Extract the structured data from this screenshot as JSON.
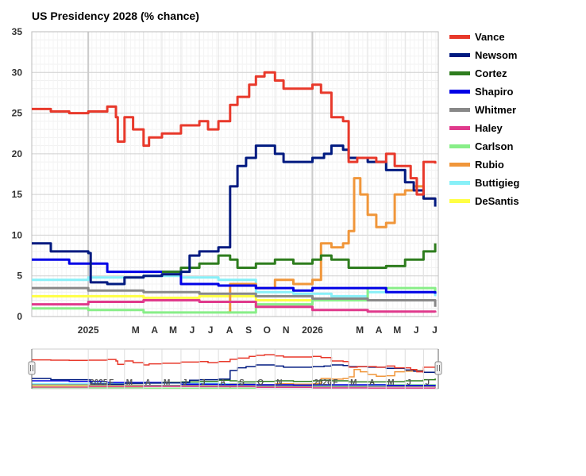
{
  "chart_data": {
    "type": "line",
    "title": "US Presidency 2028 (% chance)",
    "xlabel": "",
    "ylabel": "",
    "ylim": [
      0,
      35
    ],
    "yticks": [
      0,
      5,
      10,
      15,
      20,
      25,
      30,
      35
    ],
    "grid": true,
    "legend_position": "right",
    "x_range": [
      "2024-10-01",
      "2026-07-25"
    ],
    "xtick_labels": [
      {
        "label": "2025",
        "date": "2025-01-01",
        "bold": true
      },
      {
        "label": "M",
        "date": "2025-03-01"
      },
      {
        "label": "A",
        "date": "2025-04-01"
      },
      {
        "label": "M",
        "date": "2025-05-01"
      },
      {
        "label": "J",
        "date": "2025-06-01"
      },
      {
        "label": "J",
        "date": "2025-07-01"
      },
      {
        "label": "A",
        "date": "2025-08-01"
      },
      {
        "label": "S",
        "date": "2025-09-01"
      },
      {
        "label": "O",
        "date": "2025-10-01"
      },
      {
        "label": "N",
        "date": "2025-11-01"
      },
      {
        "label": "2026",
        "date": "2026-01-01",
        "bold": true
      },
      {
        "label": "M",
        "date": "2026-03-01"
      },
      {
        "label": "A",
        "date": "2026-04-01"
      },
      {
        "label": "M",
        "date": "2026-05-01"
      },
      {
        "label": "J",
        "date": "2026-06-01"
      },
      {
        "label": "J",
        "date": "2026-07-01"
      }
    ],
    "navigator_labels": [
      {
        "label": "2025",
        "date": "2025-01-01"
      },
      {
        "label": "F",
        "date": "2025-02-01"
      },
      {
        "label": "M",
        "date": "2025-03-01"
      },
      {
        "label": "A",
        "date": "2025-04-01"
      },
      {
        "label": "M",
        "date": "2025-05-01"
      },
      {
        "label": "J",
        "date": "2025-06-01"
      },
      {
        "label": "J",
        "date": "2025-07-01"
      },
      {
        "label": "A",
        "date": "2025-08-01"
      },
      {
        "label": "S",
        "date": "2025-09-01"
      },
      {
        "label": "O",
        "date": "2025-10-01"
      },
      {
        "label": "N",
        "date": "2025-11-01"
      },
      {
        "label": "2026",
        "date": "2026-01-01"
      },
      {
        "label": "F",
        "date": "2026-02-01"
      },
      {
        "label": "M",
        "date": "2026-03-01"
      },
      {
        "label": "A",
        "date": "2026-04-01"
      },
      {
        "label": "M",
        "date": "2026-05-01"
      },
      {
        "label": "J",
        "date": "2026-06-01"
      },
      {
        "label": "J",
        "date": "2026-07-01"
      }
    ],
    "series": [
      {
        "name": "Vance",
        "color": "#e8392b",
        "points": [
          [
            "2024-10-01",
            25.5
          ],
          [
            "2024-11-01",
            25.2
          ],
          [
            "2024-12-01",
            25.0
          ],
          [
            "2025-01-01",
            25.2
          ],
          [
            "2025-02-01",
            25.8
          ],
          [
            "2025-02-15",
            24.5
          ],
          [
            "2025-02-18",
            21.5
          ],
          [
            "2025-03-01",
            24.5
          ],
          [
            "2025-03-15",
            23.0
          ],
          [
            "2025-04-01",
            21.0
          ],
          [
            "2025-04-10",
            22.0
          ],
          [
            "2025-05-01",
            22.5
          ],
          [
            "2025-06-01",
            23.5
          ],
          [
            "2025-07-01",
            24.0
          ],
          [
            "2025-07-15",
            23.0
          ],
          [
            "2025-08-01",
            24.0
          ],
          [
            "2025-08-20",
            26.0
          ],
          [
            "2025-09-01",
            27.0
          ],
          [
            "2025-09-20",
            28.5
          ],
          [
            "2025-10-01",
            29.5
          ],
          [
            "2025-10-15",
            30.0
          ],
          [
            "2025-11-01",
            29.0
          ],
          [
            "2025-11-15",
            28.0
          ],
          [
            "2025-12-01",
            28.0
          ],
          [
            "2026-01-01",
            28.5
          ],
          [
            "2026-01-15",
            27.5
          ],
          [
            "2026-02-01",
            24.5
          ],
          [
            "2026-02-20",
            24.0
          ],
          [
            "2026-03-01",
            19.0
          ],
          [
            "2026-03-15",
            19.5
          ],
          [
            "2026-04-01",
            19.5
          ],
          [
            "2026-04-15",
            19.0
          ],
          [
            "2026-05-01",
            20.0
          ],
          [
            "2026-05-15",
            18.5
          ],
          [
            "2026-06-01",
            18.5
          ],
          [
            "2026-06-10",
            17.0
          ],
          [
            "2026-06-20",
            15.0
          ],
          [
            "2026-07-01",
            19.0
          ],
          [
            "2026-07-20",
            18.8
          ]
        ]
      },
      {
        "name": "Newsom",
        "color": "#001a80",
        "points": [
          [
            "2024-10-01",
            9.0
          ],
          [
            "2024-11-01",
            8.0
          ],
          [
            "2024-12-01",
            8.0
          ],
          [
            "2025-01-01",
            7.8
          ],
          [
            "2025-01-05",
            4.2
          ],
          [
            "2025-02-01",
            4.0
          ],
          [
            "2025-03-01",
            4.8
          ],
          [
            "2025-04-01",
            5.0
          ],
          [
            "2025-05-01",
            5.2
          ],
          [
            "2025-06-01",
            5.5
          ],
          [
            "2025-06-15",
            7.5
          ],
          [
            "2025-07-01",
            8.0
          ],
          [
            "2025-08-01",
            8.5
          ],
          [
            "2025-08-15",
            8.5
          ],
          [
            "2025-08-20",
            16.0
          ],
          [
            "2025-09-01",
            18.5
          ],
          [
            "2025-09-15",
            19.5
          ],
          [
            "2025-10-01",
            21.0
          ],
          [
            "2025-10-15",
            21.0
          ],
          [
            "2025-11-01",
            20.0
          ],
          [
            "2025-11-15",
            19.0
          ],
          [
            "2025-12-01",
            19.0
          ],
          [
            "2026-01-01",
            19.5
          ],
          [
            "2026-01-20",
            20.0
          ],
          [
            "2026-02-01",
            21.0
          ],
          [
            "2026-02-20",
            20.5
          ],
          [
            "2026-03-01",
            19.5
          ],
          [
            "2026-04-01",
            19.0
          ],
          [
            "2026-05-01",
            18.0
          ],
          [
            "2026-06-01",
            16.5
          ],
          [
            "2026-06-15",
            15.5
          ],
          [
            "2026-07-01",
            14.5
          ],
          [
            "2026-07-20",
            13.5
          ]
        ]
      },
      {
        "name": "Cortez",
        "color": "#2e7d1e",
        "points": [
          [
            "2025-05-01",
            5.5
          ],
          [
            "2025-06-01",
            6.0
          ],
          [
            "2025-07-01",
            6.5
          ],
          [
            "2025-08-01",
            7.5
          ],
          [
            "2025-08-20",
            7.0
          ],
          [
            "2025-09-01",
            6.0
          ],
          [
            "2025-10-01",
            6.5
          ],
          [
            "2025-11-01",
            7.0
          ],
          [
            "2025-12-01",
            6.5
          ],
          [
            "2026-01-01",
            7.0
          ],
          [
            "2026-01-15",
            7.5
          ],
          [
            "2026-02-01",
            7.0
          ],
          [
            "2026-03-01",
            6.0
          ],
          [
            "2026-04-01",
            6.0
          ],
          [
            "2026-05-01",
            6.2
          ],
          [
            "2026-06-01",
            7.0
          ],
          [
            "2026-07-01",
            8.0
          ],
          [
            "2026-07-20",
            9.0
          ]
        ]
      },
      {
        "name": "Shapiro",
        "color": "#0000e6",
        "points": [
          [
            "2024-10-01",
            7.0
          ],
          [
            "2024-12-01",
            6.5
          ],
          [
            "2025-02-01",
            5.5
          ],
          [
            "2025-04-01",
            5.5
          ],
          [
            "2025-06-01",
            4.0
          ],
          [
            "2025-08-01",
            3.8
          ],
          [
            "2025-10-01",
            3.5
          ],
          [
            "2025-12-01",
            3.2
          ],
          [
            "2026-01-01",
            3.5
          ],
          [
            "2026-03-01",
            3.5
          ],
          [
            "2026-05-01",
            3.0
          ],
          [
            "2026-07-20",
            2.8
          ]
        ]
      },
      {
        "name": "Whitmer",
        "color": "#888888",
        "points": [
          [
            "2024-10-01",
            3.5
          ],
          [
            "2025-01-01",
            3.2
          ],
          [
            "2025-04-01",
            3.0
          ],
          [
            "2025-07-01",
            2.8
          ],
          [
            "2025-10-01",
            2.5
          ],
          [
            "2026-01-01",
            2.2
          ],
          [
            "2026-04-01",
            2.0
          ],
          [
            "2026-07-20",
            1.2
          ]
        ]
      },
      {
        "name": "Haley",
        "color": "#e03a8c",
        "points": [
          [
            "2024-10-01",
            1.5
          ],
          [
            "2025-01-01",
            1.8
          ],
          [
            "2025-04-01",
            2.0
          ],
          [
            "2025-07-01",
            1.8
          ],
          [
            "2025-10-01",
            1.2
          ],
          [
            "2026-01-01",
            0.8
          ],
          [
            "2026-04-01",
            0.6
          ],
          [
            "2026-07-20",
            0.5
          ]
        ]
      },
      {
        "name": "Carlson",
        "color": "#88ee88",
        "points": [
          [
            "2024-10-01",
            1.0
          ],
          [
            "2025-01-01",
            0.8
          ],
          [
            "2025-04-01",
            0.5
          ],
          [
            "2025-07-01",
            0.5
          ],
          [
            "2025-10-01",
            1.5
          ],
          [
            "2026-01-01",
            2.0
          ],
          [
            "2026-04-01",
            3.5
          ],
          [
            "2026-07-20",
            3.0
          ]
        ]
      },
      {
        "name": "Rubio",
        "color": "#f0963a",
        "points": [
          [
            "2025-08-15",
            0.5
          ],
          [
            "2025-08-20",
            4.0
          ],
          [
            "2025-10-01",
            3.5
          ],
          [
            "2025-11-01",
            4.5
          ],
          [
            "2025-12-01",
            4.0
          ],
          [
            "2026-01-01",
            4.5
          ],
          [
            "2026-01-15",
            9.0
          ],
          [
            "2026-02-01",
            8.5
          ],
          [
            "2026-02-20",
            9.0
          ],
          [
            "2026-03-01",
            10.5
          ],
          [
            "2026-03-10",
            17.0
          ],
          [
            "2026-03-20",
            15.0
          ],
          [
            "2026-04-01",
            12.5
          ],
          [
            "2026-04-15",
            11.0
          ],
          [
            "2026-05-01",
            11.5
          ],
          [
            "2026-05-15",
            15.0
          ],
          [
            "2026-06-01",
            15.5
          ],
          [
            "2026-06-15",
            16.0
          ],
          [
            "2026-07-01",
            14.5
          ],
          [
            "2026-07-20",
            14.5
          ]
        ]
      },
      {
        "name": "Buttigieg",
        "color": "#88f0f8",
        "points": [
          [
            "2024-10-01",
            4.5
          ],
          [
            "2025-01-01",
            4.8
          ],
          [
            "2025-04-01",
            5.0
          ],
          [
            "2025-06-01",
            4.8
          ],
          [
            "2025-08-01",
            4.5
          ],
          [
            "2025-10-01",
            3.0
          ],
          [
            "2025-12-01",
            2.8
          ],
          [
            "2026-02-01",
            2.5
          ],
          [
            "2026-04-01",
            3.0
          ],
          [
            "2026-07-20",
            2.5
          ]
        ]
      },
      {
        "name": "DeSantis",
        "color": "#ffff44",
        "points": [
          [
            "2024-10-01",
            2.5
          ],
          [
            "2025-01-01",
            2.5
          ],
          [
            "2025-04-01",
            2.3
          ],
          [
            "2025-07-01",
            2.5
          ],
          [
            "2025-10-01",
            2.0
          ],
          [
            "2026-01-01",
            2.0
          ],
          [
            "2026-04-01",
            2.0
          ],
          [
            "2026-07-20",
            2.0
          ]
        ]
      }
    ]
  }
}
